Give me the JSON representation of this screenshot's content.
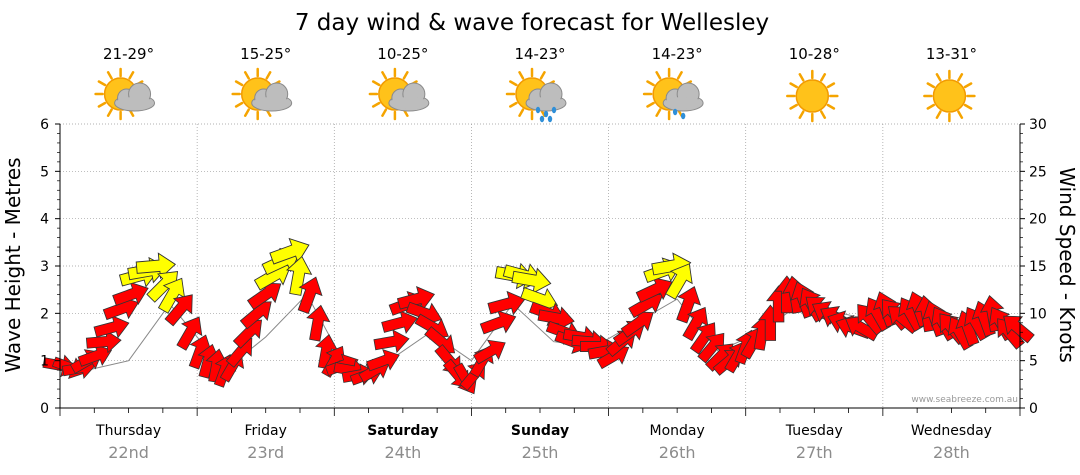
{
  "title": "7 day wind & wave forecast for Wellesley",
  "watermark": "www.seabreeze.com.au",
  "colors": {
    "arrow_strong": "#ff0000",
    "arrow_light": "#ffff00",
    "arrow_stroke": "#333333",
    "grid": "#999999",
    "axis": "#000000",
    "wave_line": "#888888",
    "date_text": "#8c8c8c"
  },
  "days": [
    {
      "name": "Thursday",
      "date": "22nd",
      "temp": "21-29°",
      "icon": "partly-cloudy-icon",
      "bold": false
    },
    {
      "name": "Friday",
      "date": "23rd",
      "temp": "15-25°",
      "icon": "partly-cloudy-icon",
      "bold": false
    },
    {
      "name": "Saturday",
      "date": "24th",
      "temp": "10-25°",
      "icon": "partly-cloudy-icon",
      "bold": true
    },
    {
      "name": "Sunday",
      "date": "25th",
      "temp": "14-23°",
      "icon": "cloud-rain-icon",
      "bold": true
    },
    {
      "name": "Monday",
      "date": "26th",
      "temp": "14-23°",
      "icon": "cloud-light-rain-icon",
      "bold": false
    },
    {
      "name": "Tuesday",
      "date": "27th",
      "temp": "10-28°",
      "icon": "sunny-icon",
      "bold": false
    },
    {
      "name": "Wednesday",
      "date": "28th",
      "temp": "13-31°",
      "icon": "sunny-icon",
      "bold": false
    }
  ],
  "chart_data": {
    "type": "line",
    "title": "7 day wind & wave forecast for Wellesley",
    "ylabel_left": "Wave Height - Metres",
    "ylabel_right": "Wind Speed - Knots",
    "ylim_left": [
      0,
      6
    ],
    "ylim_right": [
      0,
      30
    ],
    "yticks_left": [
      "0",
      "1",
      "2",
      "3",
      "4",
      "5",
      "6"
    ],
    "yticks_right": [
      "0",
      "5",
      "10",
      "15",
      "20",
      "25",
      "30"
    ],
    "categories": [
      "Thursday 22nd",
      "Friday 23rd",
      "Saturday 24th",
      "Sunday 25th",
      "Monday 26th",
      "Tuesday 27th",
      "Wednesday 28th"
    ],
    "x_unit": "day offset from Thursday 00:00",
    "wind_series": {
      "name": "Wind (knots, arrow points in travel direction)",
      "points": [
        [
          0.0,
          4.5,
          10,
          5
        ],
        [
          0.07,
          4.3,
          20,
          5
        ],
        [
          0.14,
          4.2,
          -10,
          4
        ],
        [
          0.2,
          5.0,
          -30,
          6
        ],
        [
          0.26,
          5.5,
          -20,
          6
        ],
        [
          0.32,
          7.0,
          -5,
          7
        ],
        [
          0.38,
          8.5,
          -15,
          8
        ],
        [
          0.45,
          10.5,
          -20,
          9
        ],
        [
          0.52,
          12.0,
          -20,
          10
        ],
        [
          0.58,
          14.0,
          -15,
          15
        ],
        [
          0.64,
          14.5,
          -10,
          16
        ],
        [
          0.7,
          15.0,
          -5,
          16
        ],
        [
          0.76,
          13.0,
          -45,
          14
        ],
        [
          0.82,
          12.0,
          -60,
          13
        ],
        [
          0.88,
          10.5,
          -50,
          11
        ],
        [
          0.95,
          8.0,
          -60,
          9
        ],
        [
          1.02,
          6.0,
          -70,
          7
        ],
        [
          1.08,
          5.0,
          -75,
          6
        ],
        [
          1.14,
          4.5,
          -80,
          5
        ],
        [
          1.2,
          4.0,
          -70,
          5
        ],
        [
          1.26,
          4.5,
          -60,
          5
        ],
        [
          1.32,
          6.0,
          -50,
          6
        ],
        [
          1.38,
          8.0,
          -45,
          8
        ],
        [
          1.44,
          10.0,
          -40,
          10
        ],
        [
          1.5,
          12.0,
          -35,
          12
        ],
        [
          1.56,
          14.0,
          -30,
          15
        ],
        [
          1.62,
          15.5,
          -25,
          16
        ],
        [
          1.68,
          16.5,
          -20,
          17
        ],
        [
          1.74,
          14.0,
          -80,
          15
        ],
        [
          1.82,
          12.0,
          -70,
          12
        ],
        [
          1.88,
          9.0,
          -80,
          9
        ],
        [
          1.94,
          6.0,
          -80,
          6
        ],
        [
          2.0,
          5.0,
          -60,
          5
        ],
        [
          2.06,
          4.5,
          -20,
          5
        ],
        [
          2.12,
          4.0,
          10,
          4
        ],
        [
          2.18,
          3.5,
          -10,
          4
        ],
        [
          2.24,
          3.5,
          -20,
          4
        ],
        [
          2.3,
          4.0,
          -30,
          4
        ],
        [
          2.36,
          5.0,
          -20,
          5
        ],
        [
          2.42,
          7.0,
          -10,
          8
        ],
        [
          2.48,
          9.0,
          -15,
          9
        ],
        [
          2.54,
          11.0,
          -20,
          12
        ],
        [
          2.6,
          11.5,
          -15,
          12
        ],
        [
          2.66,
          10.0,
          20,
          10
        ],
        [
          2.72,
          8.5,
          30,
          9
        ],
        [
          2.78,
          7.0,
          40,
          8
        ],
        [
          2.84,
          5.0,
          50,
          6
        ],
        [
          2.9,
          3.5,
          50,
          5
        ],
        [
          2.96,
          3.0,
          60,
          4
        ],
        [
          3.02,
          3.5,
          -50,
          4
        ],
        [
          3.08,
          5.0,
          -60,
          5
        ],
        [
          3.14,
          6.0,
          -30,
          6
        ],
        [
          3.2,
          9.0,
          -20,
          10
        ],
        [
          3.26,
          11.0,
          -15,
          12
        ],
        [
          3.32,
          14.0,
          10,
          16
        ],
        [
          3.38,
          14.0,
          15,
          16
        ],
        [
          3.44,
          13.5,
          10,
          15
        ],
        [
          3.5,
          11.5,
          20,
          13
        ],
        [
          3.56,
          10.0,
          20,
          11
        ],
        [
          3.62,
          9.5,
          10,
          10
        ],
        [
          3.68,
          8.0,
          20,
          9
        ],
        [
          3.74,
          7.0,
          20,
          8
        ],
        [
          3.8,
          7.5,
          10,
          8
        ],
        [
          3.86,
          7.0,
          5,
          7
        ],
        [
          3.92,
          6.5,
          0,
          7
        ],
        [
          3.98,
          6.0,
          -10,
          7
        ],
        [
          4.04,
          5.5,
          -30,
          6
        ],
        [
          4.1,
          7.0,
          -40,
          7
        ],
        [
          4.16,
          8.0,
          -35,
          8
        ],
        [
          4.22,
          9.0,
          -35,
          9
        ],
        [
          4.28,
          11.0,
          -30,
          11
        ],
        [
          4.34,
          12.5,
          -25,
          12
        ],
        [
          4.4,
          14.5,
          -20,
          14
        ],
        [
          4.46,
          15.0,
          -10,
          15
        ],
        [
          4.52,
          13.5,
          -60,
          14
        ],
        [
          4.58,
          11.0,
          -70,
          12
        ],
        [
          4.64,
          9.0,
          -60,
          9
        ],
        [
          4.7,
          7.5,
          -55,
          8
        ],
        [
          4.76,
          6.5,
          -50,
          7
        ],
        [
          4.82,
          5.5,
          -45,
          6
        ],
        [
          4.88,
          5.0,
          -40,
          6
        ],
        [
          4.94,
          5.5,
          -60,
          6
        ],
        [
          5.0,
          6.5,
          -70,
          7
        ],
        [
          5.06,
          7.0,
          -60,
          7
        ],
        [
          5.12,
          8.0,
          -80,
          8
        ],
        [
          5.18,
          9.0,
          -90,
          9
        ],
        [
          5.24,
          11.0,
          -90,
          11
        ],
        [
          5.3,
          12.0,
          -90,
          12
        ],
        [
          5.36,
          12.0,
          -100,
          12
        ],
        [
          5.42,
          11.5,
          -110,
          12
        ],
        [
          5.48,
          11.0,
          -120,
          11
        ],
        [
          5.54,
          10.5,
          -140,
          10
        ],
        [
          5.6,
          10.0,
          -150,
          10
        ],
        [
          5.66,
          9.5,
          -150,
          10
        ],
        [
          5.72,
          9.0,
          -160,
          9
        ],
        [
          5.78,
          8.5,
          -160,
          9
        ],
        [
          5.84,
          8.5,
          -150,
          9
        ],
        [
          5.9,
          9.5,
          -130,
          9
        ],
        [
          5.96,
          10.0,
          -120,
          10
        ],
        [
          6.02,
          10.5,
          -110,
          10
        ],
        [
          6.08,
          10.0,
          -130,
          10
        ],
        [
          6.14,
          9.5,
          -140,
          10
        ],
        [
          6.2,
          10.0,
          -120,
          10
        ],
        [
          6.26,
          10.5,
          -110,
          10
        ],
        [
          6.32,
          10.0,
          -100,
          10
        ],
        [
          6.38,
          9.5,
          -110,
          10
        ],
        [
          6.44,
          9.0,
          -120,
          10
        ],
        [
          6.5,
          8.5,
          -130,
          10
        ],
        [
          6.56,
          8.0,
          -120,
          9
        ],
        [
          6.62,
          8.5,
          -110,
          9
        ],
        [
          6.68,
          9.0,
          -120,
          9
        ],
        [
          6.74,
          9.5,
          -110,
          10
        ],
        [
          6.8,
          10.0,
          -100,
          10
        ],
        [
          6.86,
          9.0,
          -120,
          9
        ],
        [
          6.92,
          8.0,
          -130,
          9
        ],
        [
          6.98,
          8.5,
          -140,
          9
        ]
      ]
    },
    "wave_series": {
      "name": "Wave Height (m)",
      "points": [
        [
          0.2,
          0.8
        ],
        [
          0.5,
          1.0
        ],
        [
          0.8,
          2.2
        ],
        [
          1.2,
          0.8
        ],
        [
          1.5,
          1.5
        ],
        [
          1.8,
          2.4
        ],
        [
          2.1,
          0.8
        ],
        [
          2.4,
          1.0
        ],
        [
          2.7,
          1.6
        ],
        [
          3.0,
          1.0
        ],
        [
          3.3,
          2.2
        ],
        [
          3.6,
          1.4
        ],
        [
          3.9,
          1.3
        ],
        [
          4.2,
          1.8
        ],
        [
          4.5,
          2.3
        ],
        [
          4.8,
          1.2
        ],
        [
          5.1,
          1.6
        ],
        [
          5.4,
          2.2
        ],
        [
          5.7,
          2.0
        ],
        [
          6.0,
          1.8
        ],
        [
          6.4,
          1.7
        ],
        [
          6.8,
          1.8
        ]
      ]
    }
  }
}
